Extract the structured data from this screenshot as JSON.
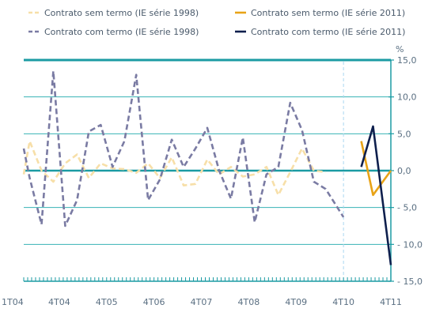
{
  "chart_data": {
    "type": "line",
    "unit_label": "%",
    "ylim": [
      -15,
      15
    ],
    "y_ticks": [
      15,
      10,
      5,
      0,
      -5,
      -10,
      -15
    ],
    "y_tick_labels": [
      "15,0",
      "10,0",
      "5,0",
      "0,0",
      "- 5,0",
      "- 10,0",
      "- 15,0"
    ],
    "x": [
      "1T04",
      "2T04",
      "3T04",
      "4T04",
      "1T05",
      "2T05",
      "3T05",
      "4T05",
      "1T06",
      "2T06",
      "3T06",
      "4T06",
      "1T07",
      "2T07",
      "3T07",
      "4T07",
      "1T08",
      "2T08",
      "3T08",
      "4T08",
      "1T09",
      "2T09",
      "3T09",
      "4T09",
      "1T10",
      "2T10",
      "3T10",
      "4T10",
      "1T11",
      "2T11",
      "3T11",
      "4T11"
    ],
    "x_tick_labels": [
      "1T04",
      "4T04",
      "4T05",
      "4T06",
      "4T07",
      "4T08",
      "4T09",
      "4T10",
      "4T11"
    ],
    "x_tick_label_positions": [
      "1T04",
      "4T04",
      "4T05",
      "4T06",
      "4T07",
      "4T08",
      "4T09",
      "4T10",
      "4T11"
    ],
    "month_grid": {
      "start": "1T04",
      "end": "4T11",
      "steps_per_quarter": 3
    },
    "series_break": "4T10",
    "grid": "horizontal",
    "legend_position": "top",
    "series": [
      {
        "name": "Contrato sem termo (IE série 1998)",
        "color": "#F7DFA8",
        "dash": true,
        "points": [
          [
            "1T04",
            -0.5
          ],
          [
            "1.5T04",
            4.0
          ],
          [
            "2.5T04",
            0.0
          ],
          [
            "3.5T04",
            -1.5
          ],
          [
            "4.5T04",
            1.0
          ],
          [
            "1.5T05",
            2.2
          ],
          [
            "2.5T05",
            -1.0
          ],
          [
            "3.5T05",
            1.0
          ],
          [
            "4.5T05",
            0.3
          ],
          [
            "1.5T06",
            0.2
          ],
          [
            "2.5T06",
            -0.3
          ],
          [
            "3.5T06",
            1.0
          ],
          [
            "4.5T06",
            -1.0
          ],
          [
            "1.5T07",
            1.8
          ],
          [
            "2.5T07",
            -2.0
          ],
          [
            "3.5T07",
            -1.8
          ],
          [
            "4.5T07",
            1.5
          ],
          [
            "1.5T08",
            -0.5
          ],
          [
            "2.5T08",
            0.5
          ],
          [
            "3.5T08",
            -0.8
          ],
          [
            "4.5T08",
            -0.5
          ],
          [
            "1.5T09",
            0.5
          ],
          [
            "2.5T09",
            -3.3
          ],
          [
            "3.5T09",
            -0.2
          ],
          [
            "4.5T09",
            3.0
          ],
          [
            "1.5T10",
            0.0
          ],
          [
            "2.5T10",
            -0.2
          ]
        ]
      },
      {
        "name": "Contrato com termo (IE série 1998)",
        "color": "#7A7BA3",
        "dash": true,
        "points": [
          [
            "1T04",
            3.0
          ],
          [
            "1.5T04",
            -1.0
          ],
          [
            "2.5T04",
            -7.3
          ],
          [
            "3.5T04",
            13.5
          ],
          [
            "4.5T04",
            -7.5
          ],
          [
            "1.5T05",
            -4.0
          ],
          [
            "2.5T05",
            5.3
          ],
          [
            "3.5T05",
            6.2
          ],
          [
            "4.5T05",
            0.5
          ],
          [
            "1.5T06",
            4.0
          ],
          [
            "2.5T06",
            13.0
          ],
          [
            "3.5T06",
            -4.0
          ],
          [
            "4.5T06",
            -1.2
          ],
          [
            "1.5T07",
            4.2
          ],
          [
            "2.5T07",
            0.5
          ],
          [
            "3.5T07",
            3.0
          ],
          [
            "4.5T07",
            5.8
          ],
          [
            "1.5T08",
            0.0
          ],
          [
            "2.5T08",
            -3.8
          ],
          [
            "3.5T08",
            4.5
          ],
          [
            "4.5T08",
            -7.0
          ],
          [
            "1.5T09",
            -0.5
          ],
          [
            "2.5T09",
            0.5
          ],
          [
            "3.5T09",
            9.2
          ],
          [
            "4.5T09",
            5.5
          ],
          [
            "1.5T10",
            -1.5
          ],
          [
            "2.5T10",
            -2.5
          ],
          [
            "4T10",
            -6.3
          ]
        ]
      },
      {
        "name": "Contrato sem termo (IE série 2011)",
        "color": "#E8A317",
        "dash": false,
        "points": [
          [
            "1.5T11",
            4.0
          ],
          [
            "2.5T11",
            -3.3
          ],
          [
            "4T11",
            0.0
          ]
        ]
      },
      {
        "name": "Contrato com termo (IE série 2011)",
        "color": "#0E1F4D",
        "dash": false,
        "points": [
          [
            "1.5T11",
            0.5
          ],
          [
            "2.5T11",
            6.0
          ],
          [
            "4T11",
            -12.8
          ]
        ]
      }
    ]
  }
}
